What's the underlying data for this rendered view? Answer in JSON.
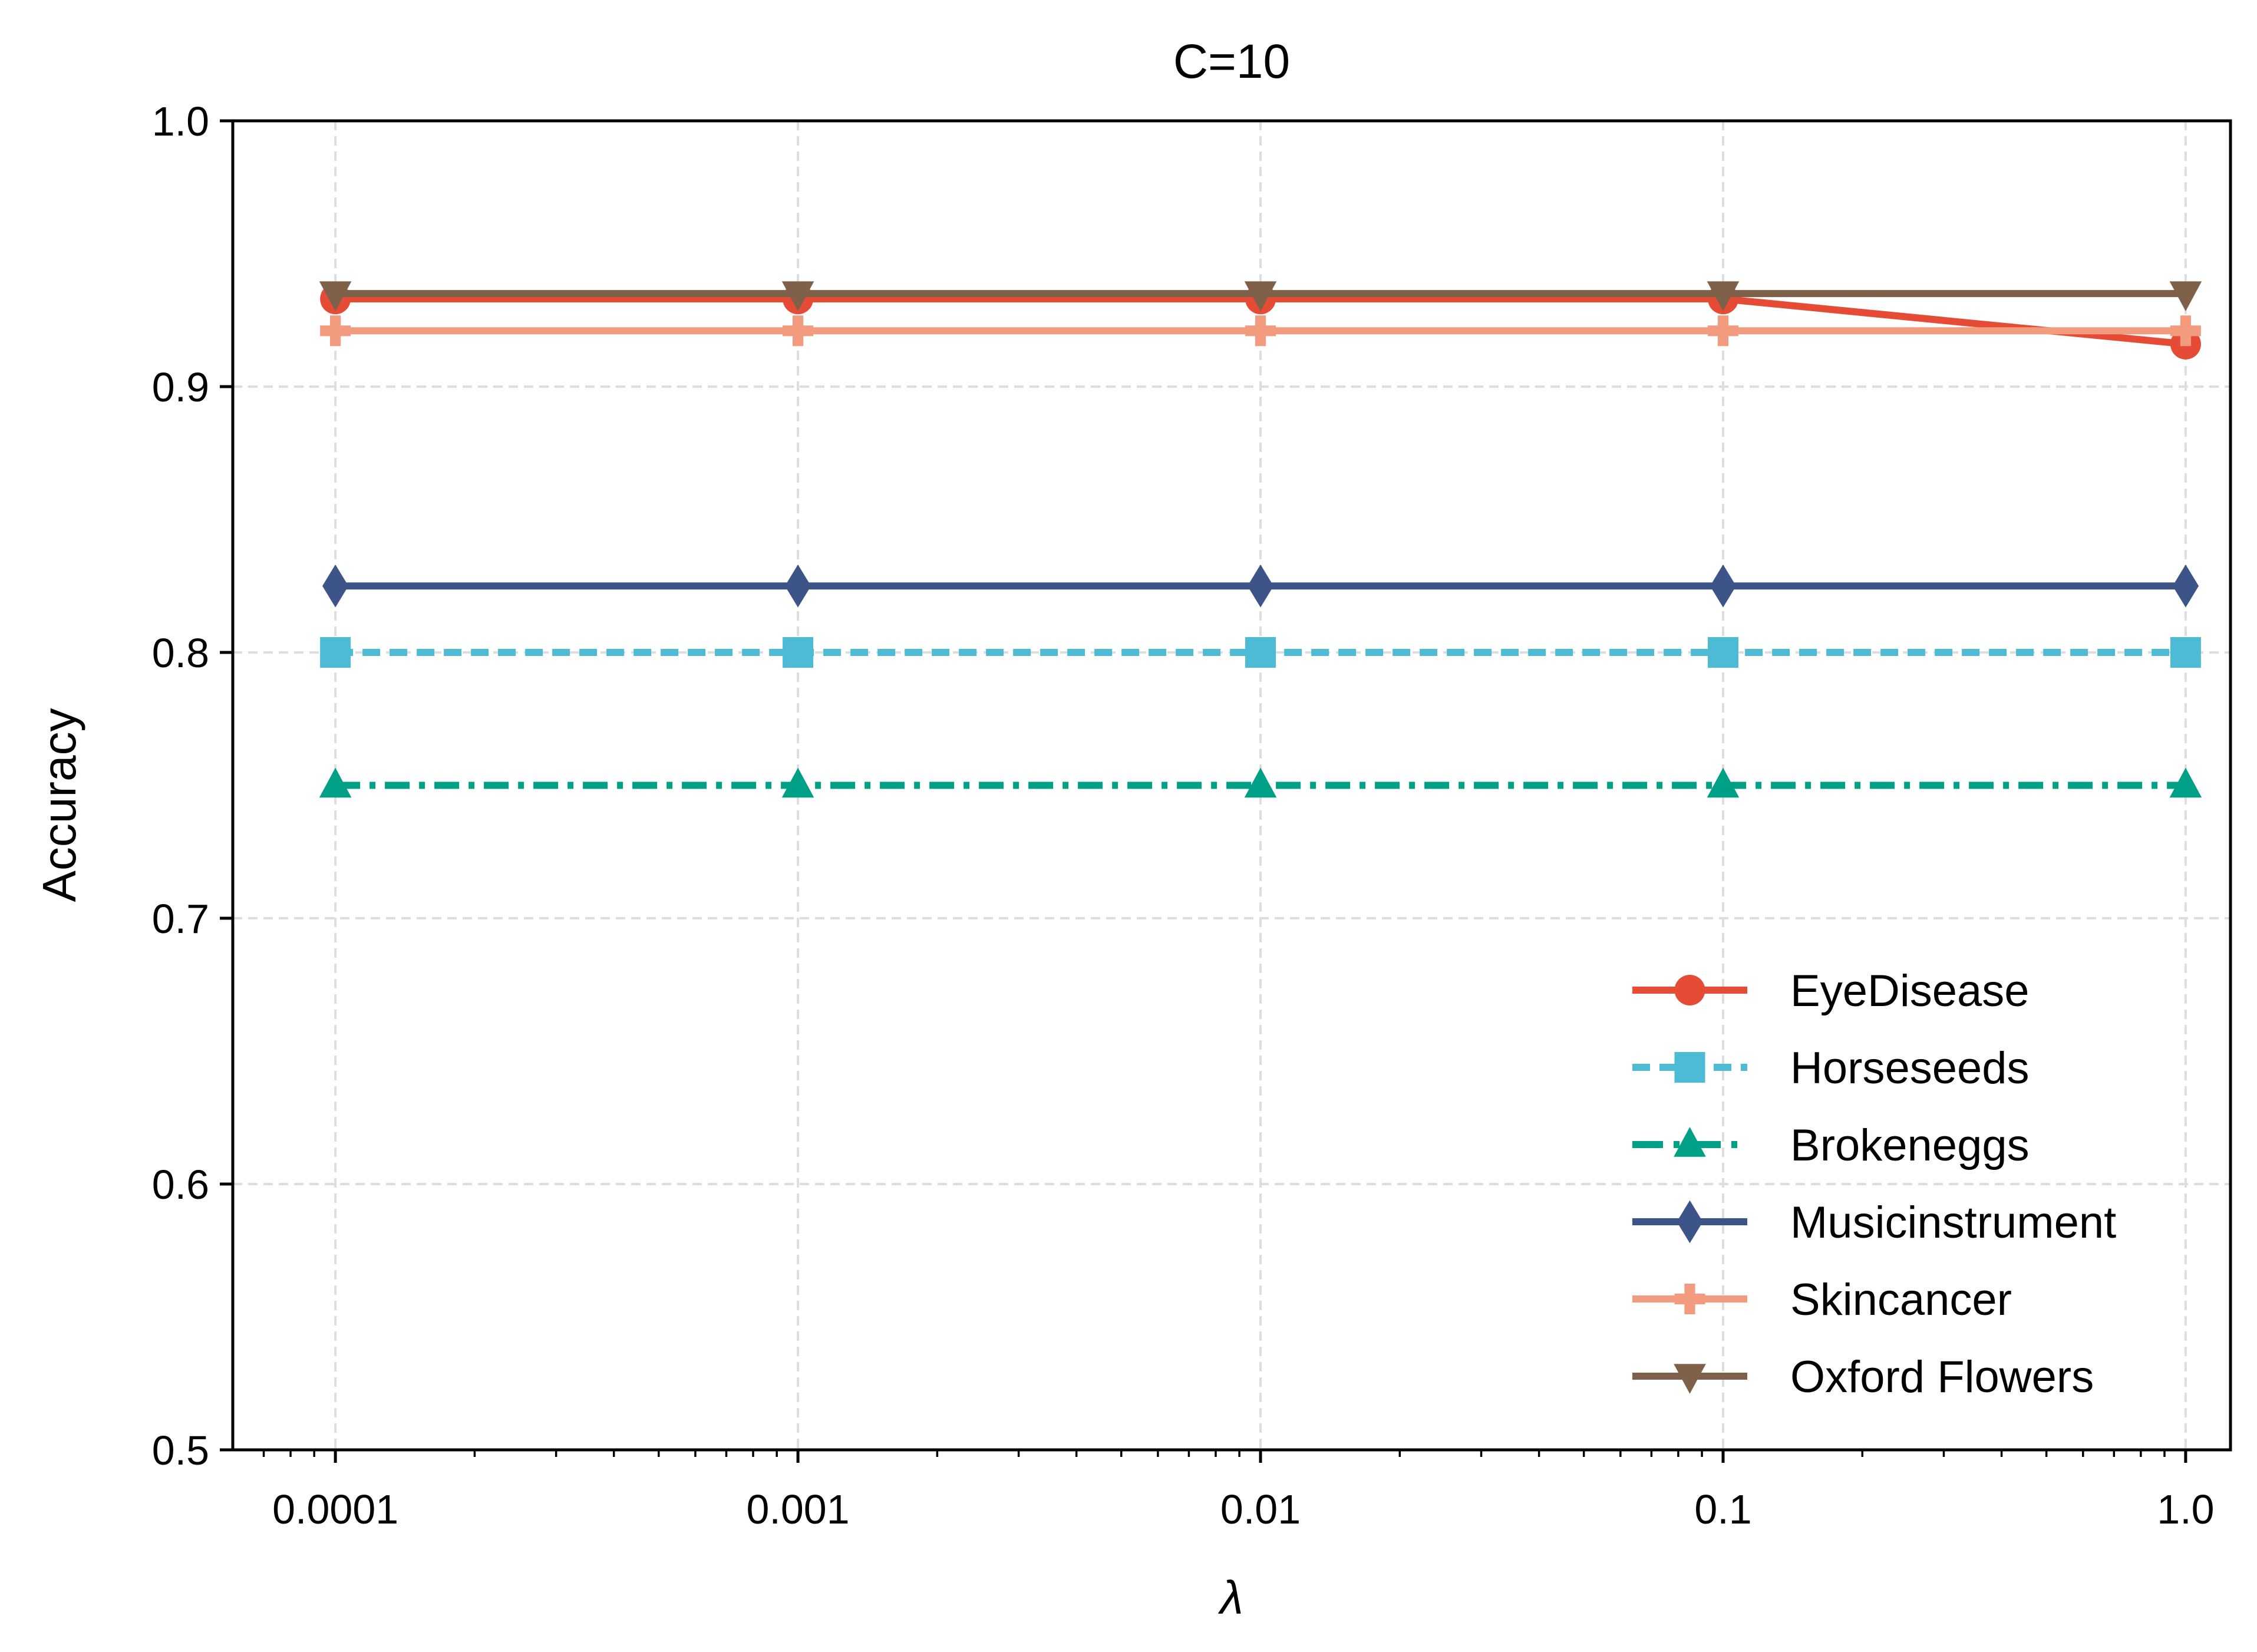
{
  "chart_data": {
    "type": "line",
    "title": "C=10",
    "xlabel": "λ",
    "ylabel": "Accuracy",
    "xscale": "log",
    "x": [
      0.0001,
      0.001,
      0.01,
      0.1,
      1.0
    ],
    "x_tick_labels": [
      "0.0001",
      "0.001",
      "0.01",
      "0.1",
      "1.0"
    ],
    "ylim": [
      0.5,
      1.0
    ],
    "y_ticks": [
      0.5,
      0.6,
      0.7,
      0.8,
      0.9,
      1.0
    ],
    "y_tick_labels": [
      "0.5",
      "0.6",
      "0.7",
      "0.8",
      "0.9",
      "1.0"
    ],
    "grid": true,
    "legend_position": "lower-right",
    "series": [
      {
        "name": "EyeDisease",
        "values": [
          0.933,
          0.933,
          0.933,
          0.933,
          0.916
        ],
        "color": "#E64B35",
        "marker": "circle",
        "linestyle": "solid"
      },
      {
        "name": "Horseseeds",
        "values": [
          0.8,
          0.8,
          0.8,
          0.8,
          0.8
        ],
        "color": "#4DBBD5",
        "marker": "square",
        "linestyle": "dashed"
      },
      {
        "name": "Brokeneggs",
        "values": [
          0.75,
          0.75,
          0.75,
          0.75,
          0.75
        ],
        "color": "#00A087",
        "marker": "triangle-up",
        "linestyle": "dashdot"
      },
      {
        "name": "Musicinstrument",
        "values": [
          0.825,
          0.825,
          0.825,
          0.825,
          0.825
        ],
        "color": "#3C5488",
        "marker": "diamond",
        "linestyle": "solid"
      },
      {
        "name": "Skincancer",
        "values": [
          0.921,
          0.921,
          0.921,
          0.921,
          0.921
        ],
        "color": "#F39B7F",
        "marker": "plus",
        "linestyle": "solid"
      },
      {
        "name": "Oxford Flowers",
        "values": [
          0.935,
          0.935,
          0.935,
          0.935,
          0.935
        ],
        "color": "#7E6148",
        "marker": "triangle-down",
        "linestyle": "solid"
      }
    ]
  }
}
